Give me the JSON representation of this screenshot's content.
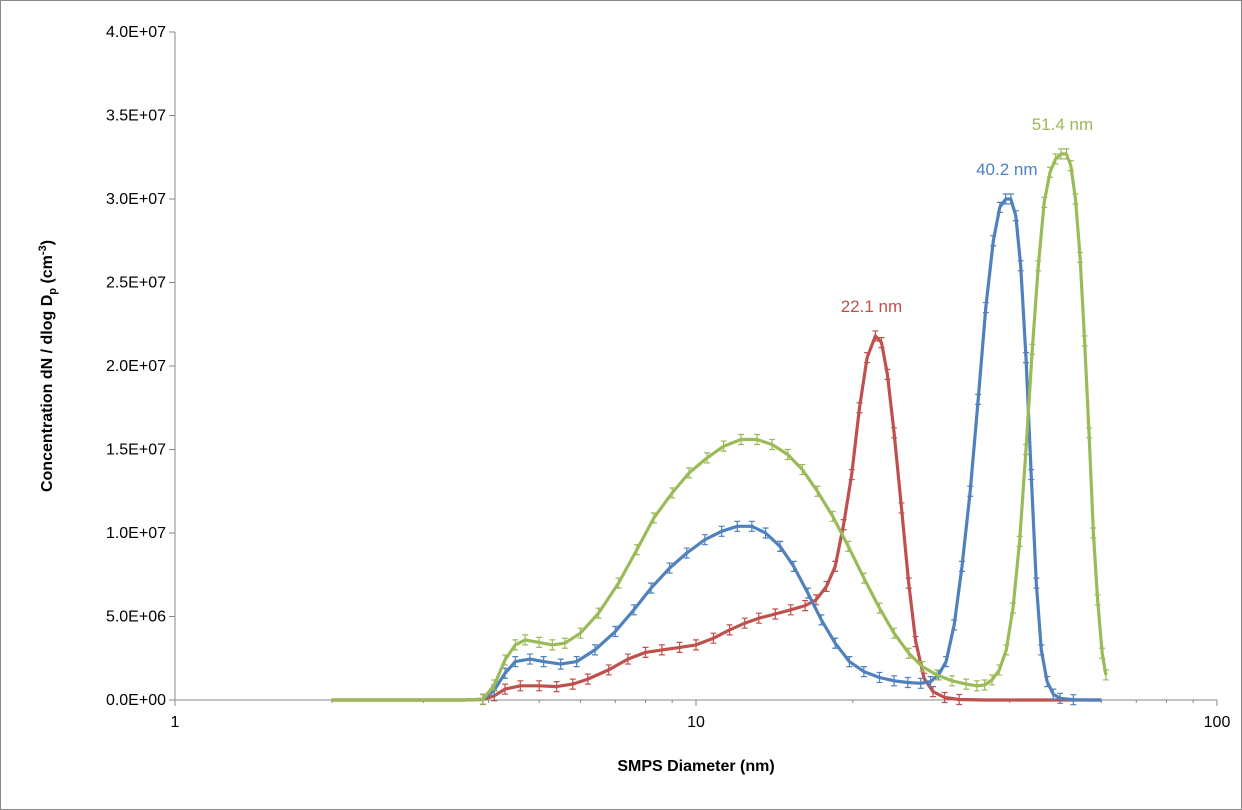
{
  "chart_data": {
    "type": "line",
    "title": "",
    "xlabel": "SMPS Diameter (nm)",
    "ylabel": {
      "main": "Concentration  dN / dlog D",
      "sub": "p",
      "unit_open": " (cm",
      "sup": "-3",
      "unit_close": ")"
    },
    "x_scale": "log",
    "xlim": [
      1,
      100
    ],
    "ylim": [
      0,
      40000000
    ],
    "x_ticks": [
      {
        "value": 1,
        "label": "1"
      },
      {
        "value": 10,
        "label": "10"
      },
      {
        "value": 100,
        "label": "100"
      }
    ],
    "y_ticks": [
      {
        "value": 0,
        "label": "0.0E+00"
      },
      {
        "value": 5000000,
        "label": "5.0E+06"
      },
      {
        "value": 10000000,
        "label": "1.0E+07"
      },
      {
        "value": 15000000,
        "label": "1.5E+07"
      },
      {
        "value": 20000000,
        "label": "2.0E+07"
      },
      {
        "value": 25000000,
        "label": "2.5E+07"
      },
      {
        "value": 30000000,
        "label": "3.0E+07"
      },
      {
        "value": 35000000,
        "label": "3.5E+07"
      },
      {
        "value": 40000000,
        "label": "4.0E+07"
      }
    ],
    "grid": false,
    "legend": "none",
    "series": [
      {
        "color": "#c0504d",
        "points": [
          [
            2,
            0
          ],
          [
            3,
            0
          ],
          [
            3.6,
            0
          ],
          [
            3.9,
            30000
          ],
          [
            4.1,
            250000
          ],
          [
            4.3,
            650000
          ],
          [
            4.6,
            850000
          ],
          [
            5,
            850000
          ],
          [
            5.4,
            800000
          ],
          [
            5.8,
            950000
          ],
          [
            6.2,
            1250000
          ],
          [
            6.8,
            1800000
          ],
          [
            7.4,
            2450000
          ],
          [
            8,
            2850000
          ],
          [
            8.6,
            3000000
          ],
          [
            9.3,
            3150000
          ],
          [
            10,
            3300000
          ],
          [
            10.8,
            3700000
          ],
          [
            11.6,
            4200000
          ],
          [
            12.4,
            4600000
          ],
          [
            13.2,
            4900000
          ],
          [
            14.2,
            5150000
          ],
          [
            15.2,
            5400000
          ],
          [
            16.2,
            5650000
          ],
          [
            17,
            6000000
          ],
          [
            17.8,
            6800000
          ],
          [
            18.5,
            8000000
          ],
          [
            19.2,
            10500000
          ],
          [
            19.9,
            13500000
          ],
          [
            20.6,
            17500000
          ],
          [
            21.3,
            20500000
          ],
          [
            22.1,
            21800000
          ],
          [
            22.7,
            21400000
          ],
          [
            23.3,
            19500000
          ],
          [
            24,
            16000000
          ],
          [
            24.8,
            11500000
          ],
          [
            25.6,
            7000000
          ],
          [
            26.4,
            3500000
          ],
          [
            27.4,
            1300000
          ],
          [
            28.5,
            500000
          ],
          [
            30,
            150000
          ],
          [
            32,
            30000
          ],
          [
            36,
            0
          ],
          [
            45,
            0
          ],
          [
            55,
            0
          ],
          [
            60,
            0
          ]
        ]
      },
      {
        "color": "#4f81bd",
        "points": [
          [
            2,
            0
          ],
          [
            3,
            0
          ],
          [
            3.6,
            0
          ],
          [
            3.9,
            50000
          ],
          [
            4.1,
            600000
          ],
          [
            4.3,
            1600000
          ],
          [
            4.5,
            2300000
          ],
          [
            4.8,
            2450000
          ],
          [
            5.1,
            2300000
          ],
          [
            5.5,
            2150000
          ],
          [
            5.9,
            2300000
          ],
          [
            6.4,
            3000000
          ],
          [
            7,
            4100000
          ],
          [
            7.6,
            5400000
          ],
          [
            8.2,
            6700000
          ],
          [
            8.9,
            7900000
          ],
          [
            9.6,
            8800000
          ],
          [
            10.4,
            9600000
          ],
          [
            11.2,
            10100000
          ],
          [
            12,
            10400000
          ],
          [
            12.8,
            10400000
          ],
          [
            13.6,
            10000000
          ],
          [
            14.5,
            9200000
          ],
          [
            15.4,
            8000000
          ],
          [
            16.4,
            6400000
          ],
          [
            17.4,
            4800000
          ],
          [
            18.5,
            3400000
          ],
          [
            19.7,
            2300000
          ],
          [
            21,
            1700000
          ],
          [
            22.5,
            1350000
          ],
          [
            24,
            1150000
          ],
          [
            25.5,
            1050000
          ],
          [
            27,
            1000000
          ],
          [
            28.2,
            1100000
          ],
          [
            29.2,
            1500000
          ],
          [
            30.2,
            2300000
          ],
          [
            31.3,
            4500000
          ],
          [
            32.4,
            8000000
          ],
          [
            33.6,
            12500000
          ],
          [
            34.8,
            18000000
          ],
          [
            36,
            23500000
          ],
          [
            37.2,
            27500000
          ],
          [
            38.3,
            29500000
          ],
          [
            39.3,
            30000000
          ],
          [
            40.2,
            30000000
          ],
          [
            41.1,
            29000000
          ],
          [
            42,
            26000000
          ],
          [
            43,
            20500000
          ],
          [
            44,
            13500000
          ],
          [
            45,
            7000000
          ],
          [
            46,
            3000000
          ],
          [
            47.2,
            1100000
          ],
          [
            48.5,
            350000
          ],
          [
            50,
            100000
          ],
          [
            53,
            20000
          ],
          [
            57,
            0
          ],
          [
            60,
            0
          ]
        ]
      },
      {
        "color": "#9bbb59",
        "points": [
          [
            2,
            0
          ],
          [
            3,
            0
          ],
          [
            3.6,
            0
          ],
          [
            3.9,
            50000
          ],
          [
            4.1,
            900000
          ],
          [
            4.3,
            2400000
          ],
          [
            4.5,
            3300000
          ],
          [
            4.7,
            3600000
          ],
          [
            5,
            3450000
          ],
          [
            5.3,
            3300000
          ],
          [
            5.6,
            3400000
          ],
          [
            6,
            4000000
          ],
          [
            6.5,
            5200000
          ],
          [
            7.1,
            7000000
          ],
          [
            7.7,
            9000000
          ],
          [
            8.3,
            10900000
          ],
          [
            9,
            12400000
          ],
          [
            9.7,
            13600000
          ],
          [
            10.5,
            14500000
          ],
          [
            11.3,
            15200000
          ],
          [
            12.2,
            15600000
          ],
          [
            13.1,
            15600000
          ],
          [
            14,
            15300000
          ],
          [
            15,
            14700000
          ],
          [
            16,
            13800000
          ],
          [
            17.1,
            12500000
          ],
          [
            18.3,
            11000000
          ],
          [
            19.6,
            9200000
          ],
          [
            21,
            7300000
          ],
          [
            22.5,
            5500000
          ],
          [
            24,
            4000000
          ],
          [
            25.6,
            2800000
          ],
          [
            27.2,
            2000000
          ],
          [
            29,
            1500000
          ],
          [
            31,
            1150000
          ],
          [
            33,
            950000
          ],
          [
            34.6,
            850000
          ],
          [
            35.8,
            900000
          ],
          [
            37,
            1200000
          ],
          [
            38.2,
            1800000
          ],
          [
            39.4,
            3000000
          ],
          [
            40.6,
            5500000
          ],
          [
            41.8,
            9500000
          ],
          [
            43,
            15000000
          ],
          [
            44.2,
            21000000
          ],
          [
            45.4,
            26000000
          ],
          [
            46.6,
            29800000
          ],
          [
            47.8,
            31600000
          ],
          [
            49,
            32400000
          ],
          [
            50.2,
            32700000
          ],
          [
            51.4,
            32700000
          ],
          [
            52.4,
            32000000
          ],
          [
            53.5,
            30000000
          ],
          [
            54.6,
            26500000
          ],
          [
            55.7,
            21500000
          ],
          [
            56.8,
            16000000
          ],
          [
            57.9,
            10000000
          ],
          [
            59,
            6000000
          ],
          [
            60.2,
            2800000
          ],
          [
            61.2,
            1500000
          ]
        ]
      }
    ],
    "annotations": [
      {
        "text": "22.1 nm",
        "x": 22.1,
        "y": 21800000,
        "color": "#c0504d"
      },
      {
        "text": "40.2 nm",
        "x": 40.2,
        "y": 30000000,
        "color": "#4f81bd"
      },
      {
        "text": "51.4 nm",
        "x": 51.4,
        "y": 32700000,
        "color": "#9bbb59"
      }
    ]
  }
}
